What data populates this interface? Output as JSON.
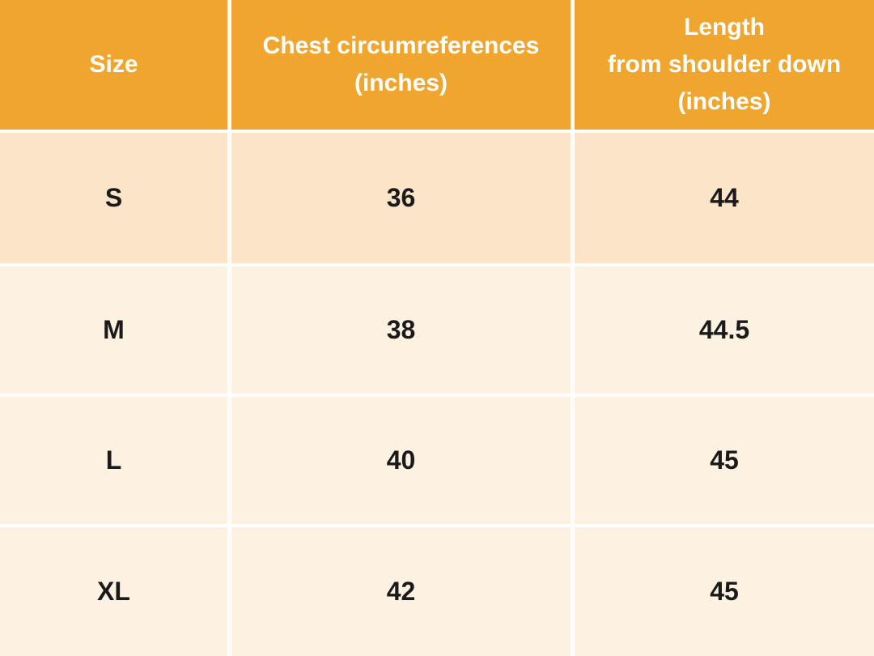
{
  "colors": {
    "header_bg": "#F0A62E",
    "header_text": "#FFFFFF",
    "row_s_bg": "#FCE4C8",
    "row_bg": "#FDF2E2",
    "grid": "#FFFFFF",
    "body_text": "#1A1A1A"
  },
  "header": {
    "size": {
      "lines": [
        "Size"
      ]
    },
    "chest": {
      "lines": [
        "Chest circumreferences",
        "(inches)"
      ]
    },
    "length": {
      "lines": [
        "Length",
        "from shoulder down",
        "(inches)"
      ]
    }
  },
  "rows": [
    {
      "size": "S",
      "chest": "36",
      "length": "44"
    },
    {
      "size": "M",
      "chest": "38",
      "length": "44.5"
    },
    {
      "size": "L",
      "chest": "40",
      "length": "45"
    },
    {
      "size": "XL",
      "chest": "42",
      "length": "45"
    }
  ]
}
